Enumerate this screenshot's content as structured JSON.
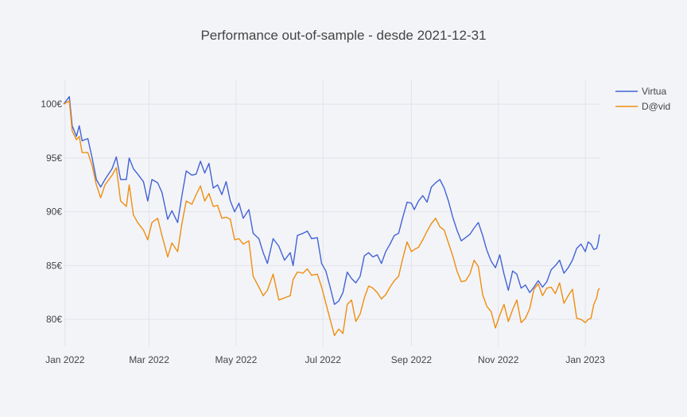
{
  "chart_data": {
    "type": "line",
    "title": "Performance out-of-sample - desde 2021-12-31",
    "xlabel": "",
    "ylabel": "",
    "x_range": [
      "2021-12-31",
      "2023-01-11"
    ],
    "y_range": [
      77.5,
      102.3
    ],
    "x_ticks": [
      {
        "date": "2022-01-01",
        "label": "Jan 2022"
      },
      {
        "date": "2022-03-01",
        "label": "Mar 2022"
      },
      {
        "date": "2022-05-01",
        "label": "May 2022"
      },
      {
        "date": "2022-07-01",
        "label": "Jul 2022"
      },
      {
        "date": "2022-09-01",
        "label": "Sep 2022"
      },
      {
        "date": "2022-11-01",
        "label": "Nov 2022"
      },
      {
        "date": "2023-01-01",
        "label": "Jan 2023"
      }
    ],
    "y_ticks": [
      {
        "value": 80,
        "label": "80€"
      },
      {
        "value": 85,
        "label": "85€"
      },
      {
        "value": 90,
        "label": "90€"
      },
      {
        "value": 95,
        "label": "95€"
      },
      {
        "value": 100,
        "label": "100€"
      }
    ],
    "grid": true,
    "legend_position": "top-right",
    "series": [
      {
        "name": "Virtua",
        "color": "#4263d6",
        "points": [
          [
            "2021-12-31",
            100.0
          ],
          [
            "2022-01-04",
            100.7
          ],
          [
            "2022-01-06",
            98.0
          ],
          [
            "2022-01-09",
            97.0
          ],
          [
            "2022-01-11",
            98.0
          ],
          [
            "2022-01-13",
            96.6
          ],
          [
            "2022-01-17",
            96.8
          ],
          [
            "2022-01-20",
            95.0
          ],
          [
            "2022-01-23",
            93.0
          ],
          [
            "2022-01-26",
            92.3
          ],
          [
            "2022-01-29",
            93.0
          ],
          [
            "2022-02-03",
            94.0
          ],
          [
            "2022-02-06",
            95.1
          ],
          [
            "2022-02-09",
            93.0
          ],
          [
            "2022-02-13",
            93.0
          ],
          [
            "2022-02-15",
            95.0
          ],
          [
            "2022-02-18",
            94.0
          ],
          [
            "2022-02-21",
            93.5
          ],
          [
            "2022-02-25",
            92.8
          ],
          [
            "2022-02-28",
            91.0
          ],
          [
            "2022-03-03",
            93.0
          ],
          [
            "2022-03-07",
            92.7
          ],
          [
            "2022-03-10",
            91.8
          ],
          [
            "2022-03-14",
            89.3
          ],
          [
            "2022-03-17",
            90.1
          ],
          [
            "2022-03-21",
            89.0
          ],
          [
            "2022-03-24",
            91.5
          ],
          [
            "2022-03-27",
            93.8
          ],
          [
            "2022-03-31",
            93.4
          ],
          [
            "2022-04-03",
            93.5
          ],
          [
            "2022-04-06",
            94.7
          ],
          [
            "2022-04-09",
            93.6
          ],
          [
            "2022-04-12",
            94.5
          ],
          [
            "2022-04-15",
            92.2
          ],
          [
            "2022-04-18",
            92.5
          ],
          [
            "2022-04-21",
            91.6
          ],
          [
            "2022-04-24",
            92.8
          ],
          [
            "2022-04-27",
            91.0
          ],
          [
            "2022-04-30",
            90.0
          ],
          [
            "2022-05-03",
            90.8
          ],
          [
            "2022-05-06",
            89.4
          ],
          [
            "2022-05-10",
            90.2
          ],
          [
            "2022-05-13",
            88.0
          ],
          [
            "2022-05-17",
            87.5
          ],
          [
            "2022-05-20",
            86.2
          ],
          [
            "2022-05-23",
            85.2
          ],
          [
            "2022-05-27",
            87.5
          ],
          [
            "2022-05-31",
            86.8
          ],
          [
            "2022-06-04",
            85.5
          ],
          [
            "2022-06-08",
            86.2
          ],
          [
            "2022-06-10",
            85.0
          ],
          [
            "2022-06-13",
            87.8
          ],
          [
            "2022-06-17",
            88.0
          ],
          [
            "2022-06-20",
            88.2
          ],
          [
            "2022-06-23",
            87.5
          ],
          [
            "2022-06-27",
            87.6
          ],
          [
            "2022-06-30",
            85.2
          ],
          [
            "2022-07-03",
            84.5
          ],
          [
            "2022-07-06",
            83.0
          ],
          [
            "2022-07-09",
            81.4
          ],
          [
            "2022-07-12",
            81.7
          ],
          [
            "2022-07-15",
            82.5
          ],
          [
            "2022-07-18",
            84.4
          ],
          [
            "2022-07-21",
            83.8
          ],
          [
            "2022-07-24",
            83.4
          ],
          [
            "2022-07-27",
            84.0
          ],
          [
            "2022-07-30",
            85.9
          ],
          [
            "2022-08-02",
            86.2
          ],
          [
            "2022-08-05",
            85.8
          ],
          [
            "2022-08-08",
            86.0
          ],
          [
            "2022-08-11",
            85.2
          ],
          [
            "2022-08-14",
            86.3
          ],
          [
            "2022-08-17",
            87.0
          ],
          [
            "2022-08-20",
            87.8
          ],
          [
            "2022-08-23",
            88.0
          ],
          [
            "2022-08-26",
            89.5
          ],
          [
            "2022-08-29",
            90.9
          ],
          [
            "2022-09-01",
            90.8
          ],
          [
            "2022-09-03",
            90.2
          ],
          [
            "2022-09-06",
            91.0
          ],
          [
            "2022-09-09",
            91.5
          ],
          [
            "2022-09-12",
            90.9
          ],
          [
            "2022-09-15",
            92.3
          ],
          [
            "2022-09-18",
            92.7
          ],
          [
            "2022-09-21",
            93.0
          ],
          [
            "2022-09-24",
            92.2
          ],
          [
            "2022-09-27",
            91.0
          ],
          [
            "2022-09-30",
            89.5
          ],
          [
            "2022-10-03",
            88.3
          ],
          [
            "2022-10-06",
            87.3
          ],
          [
            "2022-10-09",
            87.6
          ],
          [
            "2022-10-12",
            87.9
          ],
          [
            "2022-10-15",
            88.5
          ],
          [
            "2022-10-18",
            89.0
          ],
          [
            "2022-10-21",
            87.8
          ],
          [
            "2022-10-24",
            86.4
          ],
          [
            "2022-10-27",
            85.4
          ],
          [
            "2022-10-30",
            84.8
          ],
          [
            "2022-11-02",
            86.0
          ],
          [
            "2022-11-05",
            84.2
          ],
          [
            "2022-11-08",
            82.7
          ],
          [
            "2022-11-11",
            84.5
          ],
          [
            "2022-11-14",
            84.2
          ],
          [
            "2022-11-17",
            82.9
          ],
          [
            "2022-11-20",
            83.2
          ],
          [
            "2022-11-23",
            82.5
          ],
          [
            "2022-11-26",
            83.0
          ],
          [
            "2022-11-29",
            83.6
          ],
          [
            "2022-12-02",
            83.0
          ],
          [
            "2022-12-05",
            83.5
          ],
          [
            "2022-12-08",
            84.6
          ],
          [
            "2022-12-11",
            85.0
          ],
          [
            "2022-12-14",
            85.5
          ],
          [
            "2022-12-17",
            84.3
          ],
          [
            "2022-12-20",
            84.8
          ],
          [
            "2022-12-23",
            85.5
          ],
          [
            "2022-12-26",
            86.6
          ],
          [
            "2022-12-29",
            87.0
          ],
          [
            "2023-01-01",
            86.3
          ],
          [
            "2023-01-03",
            87.2
          ],
          [
            "2023-01-05",
            87.0
          ],
          [
            "2023-01-07",
            86.5
          ],
          [
            "2023-01-09",
            86.6
          ],
          [
            "2023-01-10",
            87.1
          ],
          [
            "2023-01-11",
            87.9
          ]
        ]
      },
      {
        "name": "D@vid",
        "color": "#ee8e0f",
        "points": [
          [
            "2021-12-31",
            100.0
          ],
          [
            "2022-01-04",
            100.3
          ],
          [
            "2022-01-06",
            97.5
          ],
          [
            "2022-01-09",
            96.7
          ],
          [
            "2022-01-11",
            97.0
          ],
          [
            "2022-01-13",
            95.5
          ],
          [
            "2022-01-17",
            95.5
          ],
          [
            "2022-01-20",
            94.3
          ],
          [
            "2022-01-23",
            92.5
          ],
          [
            "2022-01-26",
            91.3
          ],
          [
            "2022-01-29",
            92.5
          ],
          [
            "2022-02-03",
            93.4
          ],
          [
            "2022-02-06",
            94.1
          ],
          [
            "2022-02-09",
            91.0
          ],
          [
            "2022-02-13",
            90.5
          ],
          [
            "2022-02-15",
            92.5
          ],
          [
            "2022-02-18",
            89.7
          ],
          [
            "2022-02-21",
            89.0
          ],
          [
            "2022-02-25",
            88.3
          ],
          [
            "2022-02-28",
            87.4
          ],
          [
            "2022-03-03",
            89.0
          ],
          [
            "2022-03-07",
            89.4
          ],
          [
            "2022-03-10",
            87.8
          ],
          [
            "2022-03-14",
            85.8
          ],
          [
            "2022-03-17",
            87.1
          ],
          [
            "2022-03-21",
            86.3
          ],
          [
            "2022-03-24",
            88.9
          ],
          [
            "2022-03-27",
            91.0
          ],
          [
            "2022-03-31",
            90.7
          ],
          [
            "2022-04-03",
            91.6
          ],
          [
            "2022-04-06",
            92.4
          ],
          [
            "2022-04-09",
            91.0
          ],
          [
            "2022-04-12",
            91.7
          ],
          [
            "2022-04-15",
            90.5
          ],
          [
            "2022-04-18",
            90.6
          ],
          [
            "2022-04-21",
            89.4
          ],
          [
            "2022-04-24",
            89.5
          ],
          [
            "2022-04-27",
            89.3
          ],
          [
            "2022-04-30",
            87.4
          ],
          [
            "2022-05-03",
            87.5
          ],
          [
            "2022-05-06",
            87.0
          ],
          [
            "2022-05-10",
            87.3
          ],
          [
            "2022-05-13",
            84.0
          ],
          [
            "2022-05-17",
            83.0
          ],
          [
            "2022-05-20",
            82.2
          ],
          [
            "2022-05-23",
            82.7
          ],
          [
            "2022-05-27",
            84.2
          ],
          [
            "2022-05-31",
            81.8
          ],
          [
            "2022-06-04",
            82.0
          ],
          [
            "2022-06-08",
            82.2
          ],
          [
            "2022-06-10",
            83.7
          ],
          [
            "2022-06-13",
            84.4
          ],
          [
            "2022-06-17",
            84.3
          ],
          [
            "2022-06-20",
            84.7
          ],
          [
            "2022-06-23",
            84.1
          ],
          [
            "2022-06-27",
            84.2
          ],
          [
            "2022-06-30",
            83.0
          ],
          [
            "2022-07-03",
            81.5
          ],
          [
            "2022-07-06",
            80.0
          ],
          [
            "2022-07-09",
            78.5
          ],
          [
            "2022-07-12",
            79.1
          ],
          [
            "2022-07-15",
            78.7
          ],
          [
            "2022-07-18",
            81.4
          ],
          [
            "2022-07-21",
            81.8
          ],
          [
            "2022-07-24",
            79.8
          ],
          [
            "2022-07-27",
            80.5
          ],
          [
            "2022-07-30",
            82.0
          ],
          [
            "2022-08-02",
            83.1
          ],
          [
            "2022-08-05",
            82.9
          ],
          [
            "2022-08-08",
            82.5
          ],
          [
            "2022-08-11",
            81.9
          ],
          [
            "2022-08-14",
            82.3
          ],
          [
            "2022-08-17",
            83.0
          ],
          [
            "2022-08-20",
            83.6
          ],
          [
            "2022-08-23",
            84.0
          ],
          [
            "2022-08-26",
            85.7
          ],
          [
            "2022-08-29",
            87.2
          ],
          [
            "2022-09-01",
            86.3
          ],
          [
            "2022-09-03",
            86.5
          ],
          [
            "2022-09-06",
            86.7
          ],
          [
            "2022-09-09",
            87.4
          ],
          [
            "2022-09-12",
            88.2
          ],
          [
            "2022-09-15",
            88.9
          ],
          [
            "2022-09-18",
            89.4
          ],
          [
            "2022-09-21",
            88.6
          ],
          [
            "2022-09-24",
            88.3
          ],
          [
            "2022-09-27",
            87.1
          ],
          [
            "2022-09-30",
            85.9
          ],
          [
            "2022-10-03",
            84.5
          ],
          [
            "2022-10-06",
            83.5
          ],
          [
            "2022-10-09",
            83.6
          ],
          [
            "2022-10-12",
            84.2
          ],
          [
            "2022-10-15",
            85.5
          ],
          [
            "2022-10-18",
            84.9
          ],
          [
            "2022-10-21",
            82.3
          ],
          [
            "2022-10-24",
            81.2
          ],
          [
            "2022-10-27",
            80.7
          ],
          [
            "2022-10-30",
            79.2
          ],
          [
            "2022-11-02",
            80.4
          ],
          [
            "2022-11-05",
            81.4
          ],
          [
            "2022-11-08",
            79.8
          ],
          [
            "2022-11-11",
            80.9
          ],
          [
            "2022-11-14",
            81.8
          ],
          [
            "2022-11-17",
            79.7
          ],
          [
            "2022-11-20",
            80.1
          ],
          [
            "2022-11-23",
            81.0
          ],
          [
            "2022-11-26",
            82.8
          ],
          [
            "2022-11-29",
            83.3
          ],
          [
            "2022-12-02",
            82.2
          ],
          [
            "2022-12-05",
            82.9
          ],
          [
            "2022-12-08",
            83.0
          ],
          [
            "2022-12-11",
            82.4
          ],
          [
            "2022-12-14",
            83.4
          ],
          [
            "2022-12-17",
            81.5
          ],
          [
            "2022-12-20",
            82.2
          ],
          [
            "2022-12-23",
            82.8
          ],
          [
            "2022-12-26",
            80.1
          ],
          [
            "2022-12-29",
            80.0
          ],
          [
            "2023-01-01",
            79.7
          ],
          [
            "2023-01-03",
            80.0
          ],
          [
            "2023-01-05",
            80.1
          ],
          [
            "2023-01-07",
            81.4
          ],
          [
            "2023-01-09",
            82.0
          ],
          [
            "2023-01-10",
            82.7
          ],
          [
            "2023-01-11",
            82.9
          ]
        ]
      }
    ]
  }
}
